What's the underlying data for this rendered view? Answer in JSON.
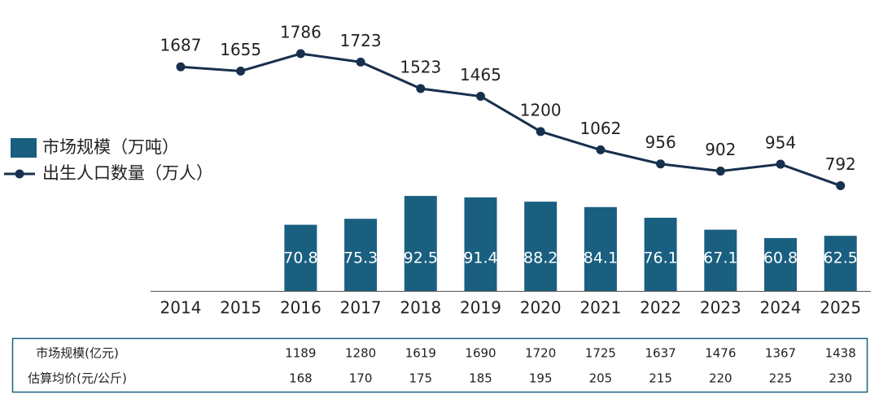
{
  "chart_data": {
    "type": "bar-line",
    "categories": [
      "2014",
      "2015",
      "2016",
      "2017",
      "2018",
      "2019",
      "2020",
      "2021",
      "2022",
      "2023",
      "2024",
      "2025"
    ],
    "series": [
      {
        "name": "市场规模（万吨）",
        "type": "bar",
        "color": "#1a5f80",
        "axis": "y2",
        "values": [
          null,
          null,
          70.8,
          75.3,
          92.5,
          91.4,
          88.2,
          84.1,
          76.1,
          67.1,
          60.8,
          62.5
        ]
      },
      {
        "name": "出生人口数量（万人）",
        "type": "line",
        "color": "#17304d",
        "values": [
          1687,
          1655,
          1786,
          1723,
          1523,
          1465,
          1200,
          1062,
          956,
          902,
          954,
          792
        ]
      }
    ],
    "ylim": [
      0,
      2190
    ],
    "y2lim": [
      21,
      240
    ],
    "legend": "left"
  },
  "table": {
    "rows": [
      {
        "label": "市场规模(亿元)",
        "values": [
          1189,
          1280,
          1619,
          1690,
          1720,
          1725,
          1637,
          1476,
          1367,
          1438
        ]
      },
      {
        "label": "估算均价(元/公斤)",
        "values": [
          168,
          170,
          175,
          185,
          195,
          205,
          215,
          220,
          225,
          230
        ]
      }
    ]
  }
}
